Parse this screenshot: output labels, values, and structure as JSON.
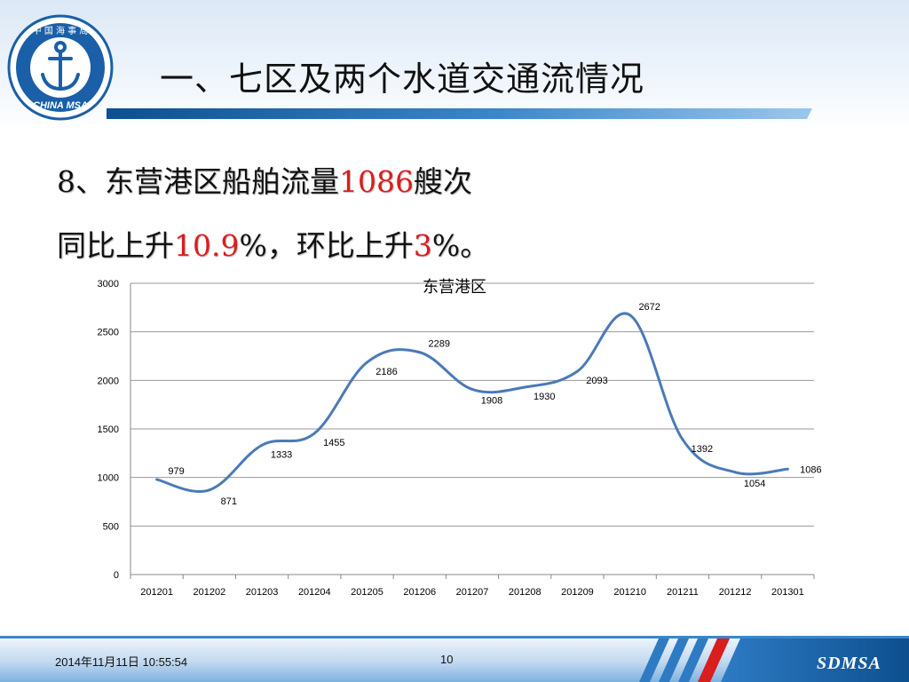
{
  "header": {
    "title": "一、七区及两个水道交通流情况",
    "logo": {
      "top_text": "中 国 海 事 局",
      "bottom_text": "CHINA MSA",
      "icon": "anchor-icon"
    }
  },
  "headline": {
    "line1_prefix": "8、东营港区船舶流量",
    "line1_value": "1086",
    "line1_suffix": "艘次",
    "line2_prefix": "同比上升",
    "line2_value1": "10.9",
    "line2_mid": "%，环比上升",
    "line2_value2": "3",
    "line2_suffix": "%。"
  },
  "chart_data": {
    "type": "line",
    "title": "东营港区",
    "categories": [
      "201201",
      "201202",
      "201203",
      "201204",
      "201205",
      "201206",
      "201207",
      "201208",
      "201209",
      "201210",
      "201211",
      "201212",
      "201301"
    ],
    "series": [
      {
        "values": [
          979,
          871,
          1333,
          1455,
          2186,
          2289,
          1908,
          1930,
          2093,
          2672,
          1392,
          1054,
          1086
        ]
      }
    ],
    "ylim": [
      0,
      3000
    ],
    "yticks": [
      0,
      500,
      1000,
      1500,
      2000,
      2500,
      3000
    ],
    "grid": true,
    "line_color": "#4a7ab8",
    "smooth": true
  },
  "footer": {
    "date": "2014年11月11日  10:55:54",
    "page": "10",
    "brand": "SDMSA"
  },
  "colors": {
    "accent_red": "#d81e1e",
    "brand_blue": "#1a5fa8"
  }
}
